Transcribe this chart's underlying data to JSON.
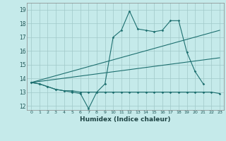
{
  "xlabel": "Humidex (Indice chaleur)",
  "background_color": "#c5eaea",
  "grid_color": "#a0c8c8",
  "line_color": "#1e7070",
  "xlim": [
    -0.5,
    23.5
  ],
  "ylim": [
    11.7,
    19.5
  ],
  "yticks": [
    12,
    13,
    14,
    15,
    16,
    17,
    18,
    19
  ],
  "xticks": [
    0,
    1,
    2,
    3,
    4,
    5,
    6,
    7,
    8,
    9,
    10,
    11,
    12,
    13,
    14,
    15,
    16,
    17,
    18,
    19,
    20,
    21,
    22,
    23
  ],
  "series1_x": [
    0,
    1,
    2,
    3,
    4,
    5,
    6,
    7,
    8,
    9,
    10,
    11,
    12,
    13,
    14,
    15,
    16,
    17,
    18,
    19,
    20,
    21
  ],
  "series1_y": [
    13.7,
    13.6,
    13.4,
    13.2,
    13.1,
    13.0,
    12.9,
    11.8,
    13.0,
    13.6,
    17.0,
    17.5,
    18.9,
    17.6,
    17.5,
    17.4,
    17.5,
    18.2,
    18.2,
    15.9,
    14.5,
    13.6
  ],
  "series2_x": [
    0,
    1,
    2,
    3,
    4,
    5,
    6,
    7,
    8,
    9,
    10,
    11,
    12,
    13,
    14,
    15,
    16,
    17,
    18,
    19,
    20,
    21,
    22,
    23
  ],
  "series2_y": [
    13.7,
    13.6,
    13.4,
    13.2,
    13.1,
    13.1,
    13.0,
    13.0,
    13.0,
    13.0,
    13.0,
    13.0,
    13.0,
    13.0,
    13.0,
    13.0,
    13.0,
    13.0,
    13.0,
    13.0,
    13.0,
    13.0,
    13.0,
    12.9
  ],
  "series3_x": [
    0,
    23
  ],
  "series3_y": [
    13.7,
    17.5
  ],
  "series4_x": [
    0,
    23
  ],
  "series4_y": [
    13.7,
    15.5
  ]
}
